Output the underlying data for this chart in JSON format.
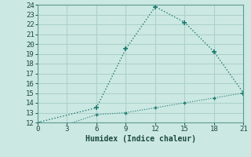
{
  "line1_x": [
    0,
    6,
    9,
    12,
    15,
    18,
    21
  ],
  "line1_y": [
    12,
    13.5,
    19.5,
    23.8,
    22.2,
    19.2,
    15
  ],
  "line2_x": [
    0,
    3,
    6,
    9,
    12,
    15,
    18,
    21
  ],
  "line2_y": [
    12,
    11.8,
    12.8,
    13.0,
    13.5,
    14.0,
    14.5,
    15
  ],
  "line_color": "#1a7a6e",
  "bg_color": "#cce8e3",
  "grid_color": "#aacfc9",
  "xlabel": "Humidex (Indice chaleur)",
  "xlim": [
    0,
    21
  ],
  "ylim": [
    12,
    24
  ],
  "xticks": [
    0,
    3,
    6,
    9,
    12,
    15,
    18,
    21
  ],
  "yticks": [
    12,
    13,
    14,
    15,
    16,
    17,
    18,
    19,
    20,
    21,
    22,
    23,
    24
  ]
}
